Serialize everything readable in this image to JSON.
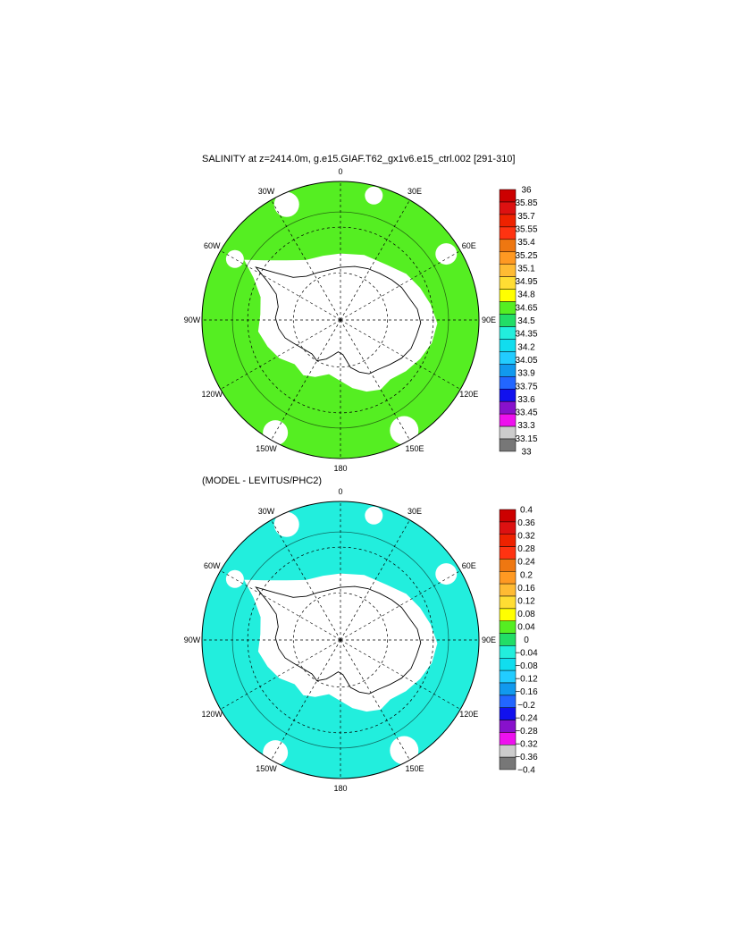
{
  "panels": [
    {
      "title": "SALINITY at z=2414.0m, g.e15.GIAF.T62_gx1v6.e15_ctrl.002 [291-310]",
      "colorbar_labels": [
        "36",
        "35.85",
        "35.7",
        "35.55",
        "35.4",
        "35.25",
        "35.1",
        "34.95",
        "34.8",
        "34.65",
        "34.5",
        "34.35",
        "34.2",
        "34.05",
        "33.9",
        "33.75",
        "33.6",
        "33.45",
        "33.3",
        "33.15",
        "33"
      ],
      "dominant_field_color": "#55ee22"
    },
    {
      "title": "(MODEL - LEVITUS/PHC2)",
      "colorbar_labels": [
        "0.4",
        "0.36",
        "0.32",
        "0.28",
        "0.24",
        "0.2",
        "0.16",
        "0.12",
        "0.08",
        "0.04",
        "0",
        "−0.04",
        "−0.08",
        "−0.12",
        "−0.16",
        "−0.2",
        "−0.24",
        "−0.28",
        "−0.32",
        "−0.36",
        "−0.4"
      ],
      "dominant_field_color": "#22eedd"
    }
  ],
  "longitude_labels": [
    "0",
    "30E",
    "60E",
    "90E",
    "120E",
    "150E",
    "180",
    "150W",
    "120W",
    "90W",
    "60W",
    "30W"
  ],
  "colorbar_colors": [
    "#cc0000",
    "#dd1111",
    "#ee2200",
    "#ff3311",
    "#ee7711",
    "#ff9922",
    "#ffbb33",
    "#ffdd33",
    "#ffff00",
    "#55ee22",
    "#22dd66",
    "#22eedd",
    "#11ddee",
    "#22ccff",
    "#1199ee",
    "#2266ff",
    "#1111ee",
    "#8811cc",
    "#ee11ee",
    "#cccccc",
    "#777777"
  ],
  "colors": {
    "land": "#ffffff",
    "ice_free_ocean_low": "#ffffff"
  }
}
